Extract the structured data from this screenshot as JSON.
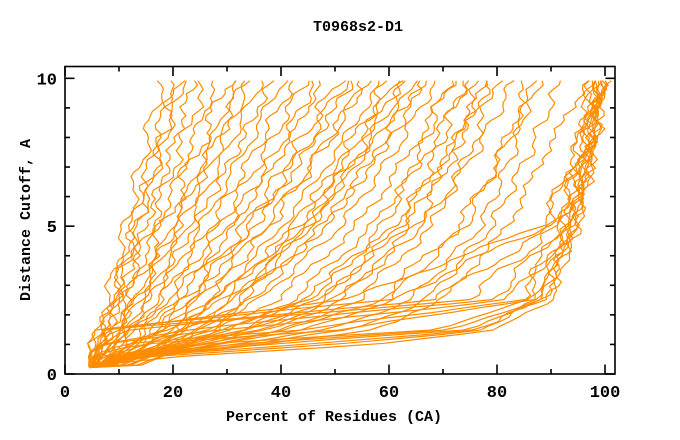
{
  "chart_data": {
    "type": "line",
    "title": "T0968s2-D1",
    "xlabel": "Percent of Residues (CA)",
    "ylabel": "Distance Cutoff, A",
    "xlim": [
      0,
      101.85
    ],
    "ylim": [
      0,
      10.4
    ],
    "x_major_ticks": [
      0,
      20,
      40,
      60,
      80,
      100
    ],
    "x_minor_ticks": [
      10,
      30,
      50,
      70,
      90
    ],
    "y_major_ticks": [
      0,
      5,
      10
    ],
    "y_minor_ticks": [
      1,
      2,
      3,
      4,
      6,
      7,
      8,
      9
    ],
    "grid": "off",
    "legend": "none",
    "line_color": "#ff8c00",
    "axis_color": "#000000",
    "background": "#ffffff",
    "curve_start_cutoff": 0.22,
    "curve_start_percent": 4.6,
    "anchor_cutoffs": [
      0.3,
      0.6,
      1,
      1.5,
      2.5,
      5,
      7.5,
      10
    ],
    "series": [
      {
        "percents": [
          4.9,
          5.3,
          5.9,
          6.5,
          7.9,
          11.3,
          14.6,
          18
        ]
      },
      {
        "percents": [
          5.0,
          5.5,
          6.2,
          7.0,
          8.6,
          12.5,
          16.3,
          20
        ]
      },
      {
        "percents": [
          5.2,
          5.8,
          6.6,
          7.5,
          9.3,
          13.7,
          18.0,
          22
        ]
      },
      {
        "percents": [
          5.3,
          6.0,
          6.9,
          8.0,
          10.0,
          14.9,
          19.7,
          24
        ]
      },
      {
        "percents": [
          5.4,
          6.1,
          7.1,
          8.3,
          10.5,
          16.0,
          21.1,
          26.2
        ]
      },
      {
        "percents": [
          5.5,
          6.3,
          7.4,
          8.8,
          11.2,
          17.2,
          22.8,
          28.3
        ]
      },
      {
        "percents": [
          5.7,
          6.6,
          7.8,
          9.3,
          12.0,
          18.4,
          24.5,
          30.4
        ]
      },
      {
        "percents": [
          5.9,
          6.9,
          8.3,
          9.9,
          12.9,
          19.8,
          26.2,
          32.3
        ]
      },
      {
        "percents": [
          6.1,
          7.3,
          8.8,
          10.5,
          13.8,
          21.2,
          28.0,
          34.4
        ]
      },
      {
        "percents": [
          6.3,
          7.6,
          9.3,
          11.2,
          14.7,
          22.6,
          29.8,
          36.5
        ]
      },
      {
        "percents": [
          6.5,
          7.9,
          9.8,
          11.9,
          15.6,
          24.0,
          31.6,
          38.6
        ]
      },
      {
        "percents": [
          6.8,
          8.4,
          10.4,
          12.7,
          16.6,
          25.3,
          33.1,
          40.5
        ]
      },
      {
        "percents": [
          7.1,
          8.9,
          11.0,
          13.4,
          17.7,
          26.9,
          35.1,
          42.6
        ]
      },
      {
        "percents": [
          7.4,
          9.4,
          11.6,
          14.2,
          18.8,
          28.5,
          37.1,
          44.7
        ]
      },
      {
        "percents": [
          7.7,
          9.9,
          12.2,
          15.0,
          19.9,
          30.1,
          39.1,
          46.8
        ]
      },
      {
        "percents": [
          8.2,
          10.6,
          13.2,
          16.2,
          21.0,
          31.3,
          40.2,
          48.1
        ]
      },
      {
        "percents": [
          8.6,
          11.2,
          14.0,
          17.1,
          22.3,
          33.2,
          42.5,
          50.8
        ]
      },
      {
        "percents": [
          9.0,
          11.8,
          14.8,
          18.1,
          23.6,
          35.1,
          44.8,
          53.5
        ]
      },
      {
        "percents": [
          9.4,
          12.4,
          15.6,
          19.1,
          24.9,
          37.0,
          47.1,
          56.2
        ]
      },
      {
        "percents": [
          10.3,
          13.5,
          16.9,
          20.5,
          26.3,
          37.9,
          47.4,
          55.8
        ]
      },
      {
        "percents": [
          10.9,
          14.3,
          17.9,
          21.6,
          27.9,
          40.2,
          50.2,
          59.0
        ]
      },
      {
        "percents": [
          11.5,
          15.1,
          18.9,
          22.9,
          29.5,
          42.5,
          53.0,
          62.2
        ]
      },
      {
        "percents": [
          12.1,
          15.9,
          19.9,
          24.1,
          31.1,
          44.8,
          55.8,
          65.4
        ]
      },
      {
        "percents": [
          13.4,
          17.4,
          21.6,
          25.9,
          32.5,
          45.2,
          55.0,
          63.5
        ]
      },
      {
        "percents": [
          14.2,
          18.5,
          22.9,
          27.4,
          34.5,
          47.9,
          58.3,
          67.2
        ]
      },
      {
        "percents": [
          6.5,
          12,
          22,
          32,
          45,
          59,
          66,
          71
        ]
      },
      {
        "percents": [
          7,
          13,
          24,
          35,
          48,
          62,
          69,
          74
        ]
      },
      {
        "percents": [
          7.5,
          14,
          26,
          38,
          51,
          65,
          72,
          77
        ]
      },
      {
        "percents": [
          8,
          15,
          28,
          41,
          54,
          68,
          75,
          80
        ]
      },
      {
        "percents": [
          6,
          11,
          21,
          33,
          47,
          63,
          72,
          79
        ]
      },
      {
        "percents": [
          6.5,
          12,
          23,
          36,
          50,
          66,
          76,
          83.5
        ]
      },
      {
        "percents": [
          5.5,
          10,
          19,
          30,
          44,
          61,
          71,
          78
        ]
      },
      {
        "percents": [
          6,
          13,
          28,
          45,
          60,
          74,
          81,
          88
        ]
      },
      {
        "percents": [
          6.5,
          14,
          31,
          49,
          64,
          77,
          83,
          87
        ]
      },
      {
        "percents": [
          7,
          15,
          34,
          53,
          67,
          79,
          86,
          92
        ]
      },
      {
        "percents": [
          7.5,
          16,
          37,
          57,
          70,
          82,
          89,
          97
        ]
      },
      {
        "percents": [
          5.5,
          11,
          25,
          42,
          58,
          73,
          81,
          86
        ]
      },
      {
        "percents": [
          6,
          22,
          57,
          80,
          90,
          95,
          98,
          100
        ]
      },
      {
        "percents": [
          5.5,
          17,
          50,
          77,
          89,
          94.5,
          97.5,
          100
        ]
      },
      {
        "percents": [
          5,
          13,
          45,
          76,
          88.5,
          94.5,
          97.5,
          99.5
        ]
      },
      {
        "percents": [
          5,
          10,
          38,
          74,
          88,
          94,
          97,
          99.5
        ]
      },
      {
        "percents": [
          4.8,
          7.5,
          31,
          72,
          87.5,
          94,
          97.5,
          99.5
        ]
      },
      {
        "percents": [
          4.8,
          6.5,
          25,
          68,
          86.5,
          93.5,
          97,
          99
        ]
      },
      {
        "percents": [
          4.5,
          5.5,
          12,
          52,
          85.5,
          93.5,
          97.5,
          99.5
        ]
      },
      {
        "percents": [
          4.5,
          5,
          9,
          45,
          84,
          93,
          96.5,
          99
        ]
      },
      {
        "percents": [
          4.5,
          5,
          6.5,
          30,
          82,
          92.5,
          96.5,
          99
        ]
      },
      {
        "percents": [
          4.5,
          4.8,
          6,
          22,
          79,
          92,
          96,
          98.5
        ]
      },
      {
        "percents": [
          4.5,
          4.8,
          5.5,
          12,
          74,
          91.5,
          96,
          98.5
        ]
      },
      {
        "percents": [
          4.5,
          4.6,
          5,
          8,
          68,
          90.5,
          95.5,
          98
        ]
      },
      {
        "percents": [
          4.5,
          4.6,
          5,
          6.5,
          60,
          89,
          95,
          98
        ]
      },
      {
        "percents": [
          4.5,
          4.5,
          5,
          6,
          52,
          88,
          94.5,
          97.5
        ]
      },
      {
        "percents": [
          6,
          9,
          14,
          20,
          30,
          45,
          54,
          62
        ]
      },
      {
        "percents": [
          6.5,
          10,
          16,
          23,
          33,
          48,
          58,
          66
        ]
      },
      {
        "percents": [
          7,
          11,
          18,
          26,
          36,
          51,
          61,
          69
        ]
      },
      {
        "percents": [
          5.5,
          8.5,
          13,
          18.5,
          28,
          43,
          52,
          60
        ]
      },
      {
        "percents": [
          7.5,
          12,
          20,
          28,
          39,
          54,
          64,
          72
        ]
      },
      {
        "percents": [
          8,
          13,
          22,
          31,
          42,
          57,
          67,
          75
        ]
      },
      {
        "percents": [
          5.1,
          5.7,
          6.4,
          7.3,
          9.0,
          13.1,
          17.2,
          21
        ]
      },
      {
        "percents": [
          6.0,
          7.1,
          8.5,
          10.2,
          13.3,
          20.5,
          27.1,
          33.4
        ]
      },
      {
        "percents": [
          8.8,
          11.5,
          14.4,
          17.6,
          23.0,
          34.2,
          43.7,
          52.2
        ]
      }
    ]
  }
}
